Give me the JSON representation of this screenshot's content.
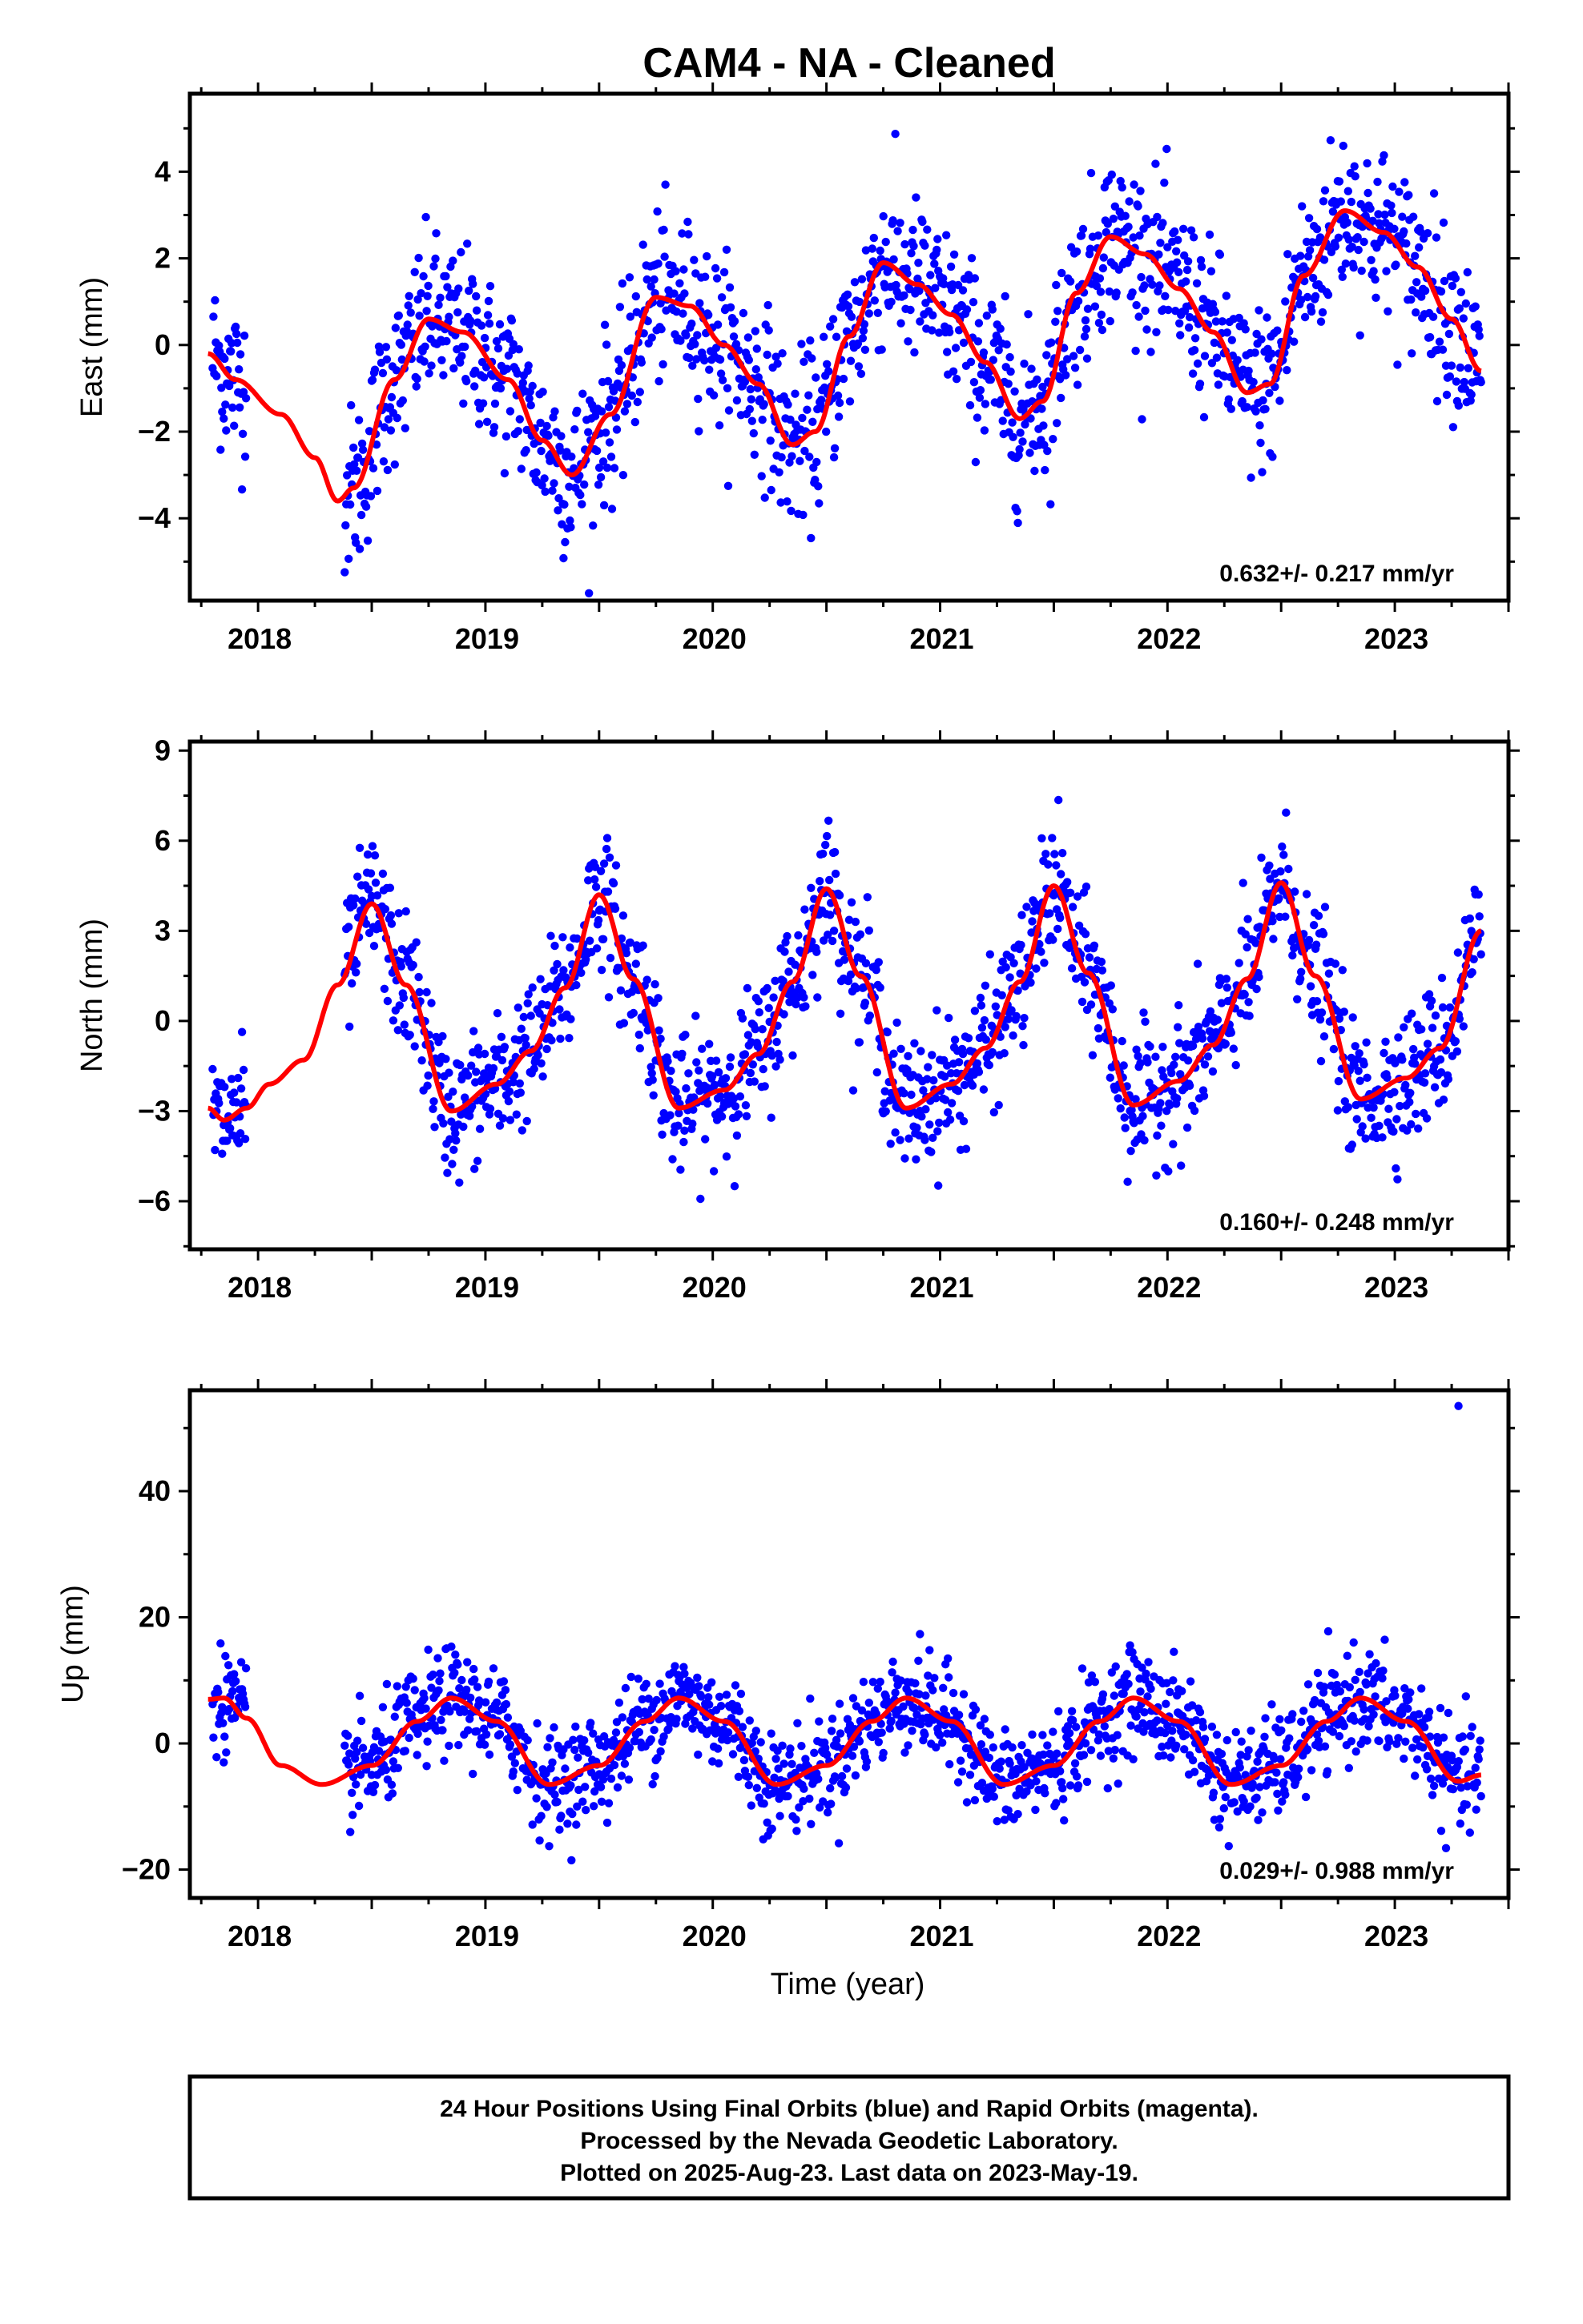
{
  "title": "CAM4  - NA - Cleaned",
  "xlabel": "Time (year)",
  "footer": [
    "24 Hour Positions Using Final Orbits (blue) and Rapid Orbits (magenta).",
    "Processed by the Nevada Geodetic Laboratory.",
    "Plotted on 2025-Aug-23. Last data on 2023-May-19."
  ],
  "colors": {
    "points": "#0000ff",
    "model": "#ff0000",
    "frame": "#000000"
  },
  "chart_data": [
    {
      "type": "scatter",
      "component": "east",
      "ylabel": "East (mm)",
      "rate_text": "0.632+/- 0.217 mm/yr",
      "xlim": [
        2017.7,
        2023.5
      ],
      "ylim": [
        -5.9,
        5.8
      ],
      "yticks": [
        -4,
        -2,
        0,
        2,
        4
      ],
      "xticks": [
        2018,
        2019,
        2020,
        2021,
        2022,
        2023
      ],
      "data_start": 2017.8,
      "data_end": 2023.38,
      "gap": [
        2017.95,
        2018.38
      ],
      "model": {
        "x": [
          2017.78,
          2017.9,
          2018.1,
          2018.25,
          2018.35,
          2018.42,
          2018.6,
          2018.75,
          2018.9,
          2019.1,
          2019.25,
          2019.38,
          2019.55,
          2019.75,
          2019.9,
          2020.05,
          2020.2,
          2020.35,
          2020.45,
          2020.6,
          2020.75,
          2020.9,
          2021.05,
          2021.2,
          2021.35,
          2021.45,
          2021.6,
          2021.75,
          2021.9,
          2022.05,
          2022.2,
          2022.35,
          2022.45,
          2022.6,
          2022.78,
          2022.95,
          2023.1,
          2023.25,
          2023.38
        ],
        "y": [
          -0.2,
          -0.8,
          -1.6,
          -2.6,
          -3.6,
          -3.3,
          -0.8,
          0.6,
          0.3,
          -0.8,
          -2.2,
          -3.0,
          -1.6,
          1.1,
          0.9,
          0.0,
          -0.9,
          -2.3,
          -2.0,
          0.2,
          1.9,
          1.4,
          0.7,
          -0.4,
          -1.7,
          -1.3,
          1.2,
          2.5,
          2.1,
          1.3,
          0.3,
          -1.1,
          -0.9,
          1.6,
          3.1,
          2.6,
          1.8,
          0.6,
          -0.6
        ]
      },
      "noise": 0.95
    },
    {
      "type": "scatter",
      "component": "north",
      "ylabel": "North (mm)",
      "rate_text": "0.160+/- 0.248 mm/yr",
      "xlim": [
        2017.7,
        2023.5
      ],
      "ylim": [
        -7.6,
        9.3
      ],
      "yticks": [
        -6,
        -3,
        0,
        3,
        6,
        9
      ],
      "xticks": [
        2018,
        2019,
        2020,
        2021,
        2022,
        2023
      ],
      "data_start": 2017.8,
      "data_end": 2023.38,
      "gap": [
        2017.95,
        2018.38
      ],
      "model": {
        "x": [
          2017.78,
          2017.85,
          2017.95,
          2018.05,
          2018.2,
          2018.35,
          2018.5,
          2018.65,
          2018.85,
          2019.05,
          2019.2,
          2019.35,
          2019.5,
          2019.65,
          2019.85,
          2020.05,
          2020.2,
          2020.35,
          2020.5,
          2020.65,
          2020.85,
          2021.05,
          2021.2,
          2021.35,
          2021.5,
          2021.65,
          2021.85,
          2022.05,
          2022.2,
          2022.35,
          2022.5,
          2022.65,
          2022.85,
          2023.05,
          2023.2,
          2023.38
        ],
        "y": [
          -2.9,
          -3.3,
          -2.9,
          -2.1,
          -1.3,
          1.2,
          3.9,
          1.2,
          -3.0,
          -2.1,
          -1.0,
          1.1,
          4.2,
          1.4,
          -2.9,
          -2.3,
          -1.1,
          1.3,
          4.4,
          1.5,
          -2.9,
          -2.1,
          -0.9,
          1.3,
          4.5,
          1.6,
          -2.8,
          -2.0,
          -0.8,
          1.4,
          4.6,
          1.5,
          -2.6,
          -1.9,
          -0.9,
          3.0
        ]
      },
      "noise": 1.1
    },
    {
      "type": "scatter",
      "component": "up",
      "ylabel": "Up (mm)",
      "rate_text": "0.029+/- 0.988 mm/yr",
      "xlim": [
        2017.7,
        2023.5
      ],
      "ylim": [
        -24.5,
        56
      ],
      "yticks": [
        -20,
        0,
        20,
        40
      ],
      "xticks": [
        2018,
        2019,
        2020,
        2021,
        2022,
        2023
      ],
      "data_start": 2017.8,
      "data_end": 2023.38,
      "gap": [
        2017.95,
        2018.38
      ],
      "model": {
        "x": [
          2017.78,
          2017.85,
          2017.95,
          2018.1,
          2018.28,
          2018.5,
          2018.7,
          2018.85,
          2019.05,
          2019.28,
          2019.5,
          2019.7,
          2019.85,
          2020.05,
          2020.28,
          2020.5,
          2020.7,
          2020.85,
          2021.05,
          2021.28,
          2021.5,
          2021.7,
          2021.85,
          2022.05,
          2022.28,
          2022.5,
          2022.7,
          2022.85,
          2023.05,
          2023.28,
          2023.38
        ],
        "y": [
          7.0,
          7.2,
          4.0,
          -3.5,
          -6.5,
          -3.5,
          3.5,
          7.2,
          3.5,
          -6.5,
          -3.5,
          3.5,
          7.2,
          3.5,
          -6.5,
          -3.5,
          3.5,
          7.2,
          3.5,
          -6.5,
          -3.5,
          3.5,
          7.2,
          3.5,
          -6.5,
          -3.5,
          3.5,
          7.2,
          3.5,
          -6.0,
          -5.0
        ]
      },
      "noise": 4.0,
      "outlier": {
        "x": 2023.28,
        "y": 53.5
      }
    }
  ]
}
